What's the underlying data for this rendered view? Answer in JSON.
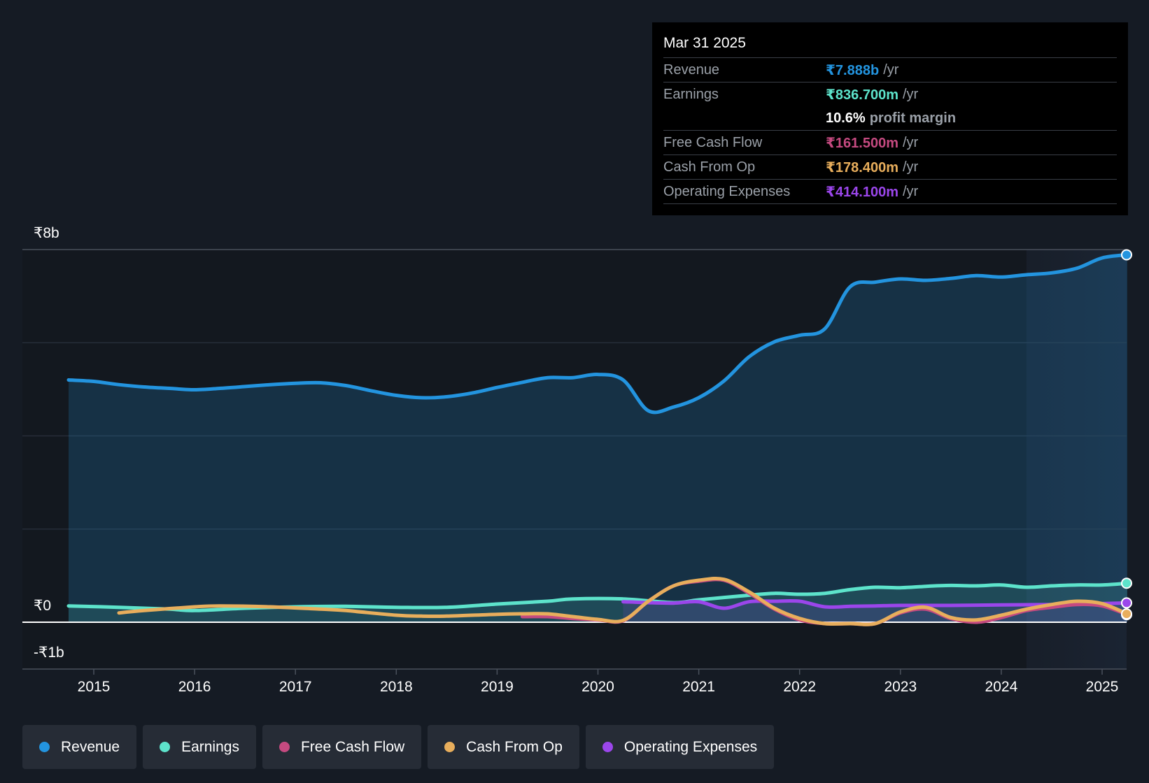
{
  "colors": {
    "background": "#151b24",
    "revenue": "#2394df",
    "earnings": "#5de3cb",
    "fcf": "#c54a80",
    "cfo": "#e8ae5c",
    "opex": "#9b46eb"
  },
  "tooltip": {
    "date": "Mar 31 2025",
    "rows": [
      {
        "label": "Revenue",
        "value": "₹7.888b",
        "unit": "/yr"
      },
      {
        "label": "Earnings",
        "value": "₹836.700m",
        "unit": "/yr"
      },
      {
        "label": "Free Cash Flow",
        "value": "₹161.500m",
        "unit": "/yr"
      },
      {
        "label": "Cash From Op",
        "value": "₹178.400m",
        "unit": "/yr"
      },
      {
        "label": "Operating Expenses",
        "value": "₹414.100m",
        "unit": "/yr"
      }
    ],
    "margin": {
      "value": "10.6%",
      "label": "profit margin"
    }
  },
  "legend": [
    {
      "label": "Revenue",
      "color": "#2394df"
    },
    {
      "label": "Earnings",
      "color": "#5de3cb"
    },
    {
      "label": "Free Cash Flow",
      "color": "#c54a80"
    },
    {
      "label": "Cash From Op",
      "color": "#e8ae5c"
    },
    {
      "label": "Operating Expenses",
      "color": "#9b46eb"
    }
  ],
  "chart_data": {
    "type": "line",
    "title": "",
    "xlabel": "",
    "ylabel": "",
    "currency_unit": "₹ billions",
    "y_tick_labels": [
      "₹8b",
      "₹0",
      "-₹1b"
    ],
    "y_ticks": [
      8,
      0,
      -1
    ],
    "ylim": [
      -1,
      8
    ],
    "xlim": [
      2014.45,
      2025.25
    ],
    "x_tick_labels": [
      "2015",
      "2016",
      "2017",
      "2018",
      "2019",
      "2020",
      "2021",
      "2022",
      "2023",
      "2024",
      "2025"
    ],
    "x_ticks": [
      2015,
      2016,
      2017,
      2018,
      2019,
      2020,
      2021,
      2022,
      2023,
      2024,
      2025
    ],
    "highlight_start": 2024.25,
    "series": [
      {
        "name": "Revenue",
        "key": "revenue",
        "fill": true,
        "points": [
          [
            2014.75,
            5.2
          ],
          [
            2015.0,
            5.17
          ],
          [
            2015.25,
            5.1
          ],
          [
            2015.5,
            5.05
          ],
          [
            2015.75,
            5.02
          ],
          [
            2016.0,
            4.99
          ],
          [
            2016.25,
            5.02
          ],
          [
            2016.5,
            5.06
          ],
          [
            2016.75,
            5.1
          ],
          [
            2017.0,
            5.13
          ],
          [
            2017.25,
            5.14
          ],
          [
            2017.5,
            5.08
          ],
          [
            2017.75,
            4.97
          ],
          [
            2018.0,
            4.87
          ],
          [
            2018.25,
            4.82
          ],
          [
            2018.5,
            4.84
          ],
          [
            2018.75,
            4.92
          ],
          [
            2019.0,
            5.04
          ],
          [
            2019.25,
            5.15
          ],
          [
            2019.5,
            5.25
          ],
          [
            2019.75,
            5.25
          ],
          [
            2020.0,
            5.32
          ],
          [
            2020.25,
            5.2
          ],
          [
            2020.5,
            4.54
          ],
          [
            2020.75,
            4.62
          ],
          [
            2021.0,
            4.82
          ],
          [
            2021.25,
            5.18
          ],
          [
            2021.5,
            5.7
          ],
          [
            2021.75,
            6.02
          ],
          [
            2022.0,
            6.16
          ],
          [
            2022.25,
            6.3
          ],
          [
            2022.5,
            7.2
          ],
          [
            2022.75,
            7.3
          ],
          [
            2023.0,
            7.37
          ],
          [
            2023.25,
            7.34
          ],
          [
            2023.5,
            7.38
          ],
          [
            2023.75,
            7.44
          ],
          [
            2024.0,
            7.41
          ],
          [
            2024.25,
            7.46
          ],
          [
            2024.5,
            7.5
          ],
          [
            2024.75,
            7.6
          ],
          [
            2025.0,
            7.82
          ],
          [
            2025.25,
            7.888
          ]
        ]
      },
      {
        "name": "Earnings",
        "key": "earnings",
        "fill": true,
        "points": [
          [
            2014.75,
            0.35
          ],
          [
            2015.25,
            0.32
          ],
          [
            2015.75,
            0.28
          ],
          [
            2016.0,
            0.25
          ],
          [
            2016.5,
            0.3
          ],
          [
            2017.0,
            0.33
          ],
          [
            2017.5,
            0.34
          ],
          [
            2018.0,
            0.32
          ],
          [
            2018.5,
            0.32
          ],
          [
            2019.0,
            0.39
          ],
          [
            2019.5,
            0.45
          ],
          [
            2019.75,
            0.5
          ],
          [
            2020.25,
            0.5
          ],
          [
            2020.75,
            0.42
          ],
          [
            2021.0,
            0.48
          ],
          [
            2021.5,
            0.58
          ],
          [
            2021.75,
            0.62
          ],
          [
            2022.0,
            0.6
          ],
          [
            2022.25,
            0.62
          ],
          [
            2022.5,
            0.7
          ],
          [
            2022.75,
            0.75
          ],
          [
            2023.0,
            0.74
          ],
          [
            2023.25,
            0.77
          ],
          [
            2023.5,
            0.79
          ],
          [
            2023.75,
            0.78
          ],
          [
            2024.0,
            0.8
          ],
          [
            2024.25,
            0.75
          ],
          [
            2024.5,
            0.78
          ],
          [
            2024.75,
            0.8
          ],
          [
            2025.0,
            0.8
          ],
          [
            2025.25,
            0.8367
          ]
        ]
      },
      {
        "name": "Free Cash Flow",
        "key": "fcf",
        "fill": false,
        "points": [
          [
            2019.25,
            0.12
          ],
          [
            2019.5,
            0.12
          ],
          [
            2019.75,
            0.08
          ],
          [
            2020.0,
            0.05
          ],
          [
            2020.25,
            0.03
          ],
          [
            2020.5,
            0.45
          ],
          [
            2020.75,
            0.78
          ],
          [
            2021.0,
            0.88
          ],
          [
            2021.25,
            0.9
          ],
          [
            2021.5,
            0.62
          ],
          [
            2021.75,
            0.28
          ],
          [
            2022.0,
            0.05
          ],
          [
            2022.25,
            -0.03
          ],
          [
            2022.5,
            -0.03
          ],
          [
            2022.75,
            -0.03
          ],
          [
            2023.0,
            0.2
          ],
          [
            2023.25,
            0.28
          ],
          [
            2023.5,
            0.08
          ],
          [
            2023.75,
            0.0
          ],
          [
            2024.0,
            0.1
          ],
          [
            2024.25,
            0.25
          ],
          [
            2024.5,
            0.32
          ],
          [
            2024.75,
            0.38
          ],
          [
            2025.0,
            0.35
          ],
          [
            2025.25,
            0.1615
          ]
        ]
      },
      {
        "name": "Cash From Op",
        "key": "cfo",
        "fill": false,
        "points": [
          [
            2015.25,
            0.2
          ],
          [
            2015.5,
            0.25
          ],
          [
            2016.0,
            0.33
          ],
          [
            2016.25,
            0.35
          ],
          [
            2016.75,
            0.33
          ],
          [
            2017.25,
            0.28
          ],
          [
            2017.5,
            0.25
          ],
          [
            2018.0,
            0.15
          ],
          [
            2018.25,
            0.13
          ],
          [
            2018.5,
            0.13
          ],
          [
            2019.0,
            0.17
          ],
          [
            2019.25,
            0.18
          ],
          [
            2019.5,
            0.18
          ],
          [
            2019.75,
            0.12
          ],
          [
            2020.0,
            0.06
          ],
          [
            2020.25,
            0.04
          ],
          [
            2020.5,
            0.45
          ],
          [
            2020.75,
            0.78
          ],
          [
            2021.0,
            0.9
          ],
          [
            2021.25,
            0.92
          ],
          [
            2021.5,
            0.65
          ],
          [
            2021.75,
            0.3
          ],
          [
            2022.0,
            0.08
          ],
          [
            2022.25,
            -0.03
          ],
          [
            2022.5,
            -0.03
          ],
          [
            2022.75,
            -0.03
          ],
          [
            2023.0,
            0.22
          ],
          [
            2023.25,
            0.32
          ],
          [
            2023.5,
            0.1
          ],
          [
            2023.75,
            0.05
          ],
          [
            2024.0,
            0.15
          ],
          [
            2024.25,
            0.28
          ],
          [
            2024.5,
            0.38
          ],
          [
            2024.75,
            0.45
          ],
          [
            2025.0,
            0.4
          ],
          [
            2025.25,
            0.1784
          ]
        ]
      },
      {
        "name": "Operating Expenses",
        "key": "opex",
        "fill": true,
        "points": [
          [
            2020.25,
            0.44
          ],
          [
            2020.5,
            0.42
          ],
          [
            2020.75,
            0.41
          ],
          [
            2021.0,
            0.44
          ],
          [
            2021.25,
            0.3
          ],
          [
            2021.5,
            0.44
          ],
          [
            2021.75,
            0.45
          ],
          [
            2022.0,
            0.45
          ],
          [
            2022.25,
            0.33
          ],
          [
            2022.5,
            0.34
          ],
          [
            2022.75,
            0.35
          ],
          [
            2023.0,
            0.36
          ],
          [
            2023.5,
            0.36
          ],
          [
            2024.0,
            0.37
          ],
          [
            2024.5,
            0.38
          ],
          [
            2025.0,
            0.4
          ],
          [
            2025.25,
            0.4141
          ]
        ]
      }
    ]
  }
}
